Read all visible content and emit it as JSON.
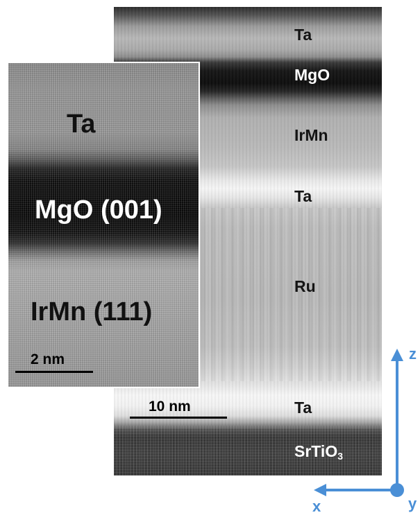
{
  "main_layers": [
    {
      "label": "Ta"
    },
    {
      "label": "MgO"
    },
    {
      "label": "IrMn"
    },
    {
      "label": "Ta"
    },
    {
      "label": "Ru"
    },
    {
      "label": "Ta"
    }
  ],
  "substrate": {
    "label": "SrTiO",
    "subscript": "3"
  },
  "inset_labels": {
    "ta": "Ta",
    "mgo": "MgO (001)",
    "irmn": "IrMn (111)"
  },
  "scale_bars": {
    "inset": "2 nm",
    "main": "10 nm"
  },
  "axes": {
    "z": "z",
    "x": "x",
    "y": "y",
    "color": "#4a8fd6"
  }
}
